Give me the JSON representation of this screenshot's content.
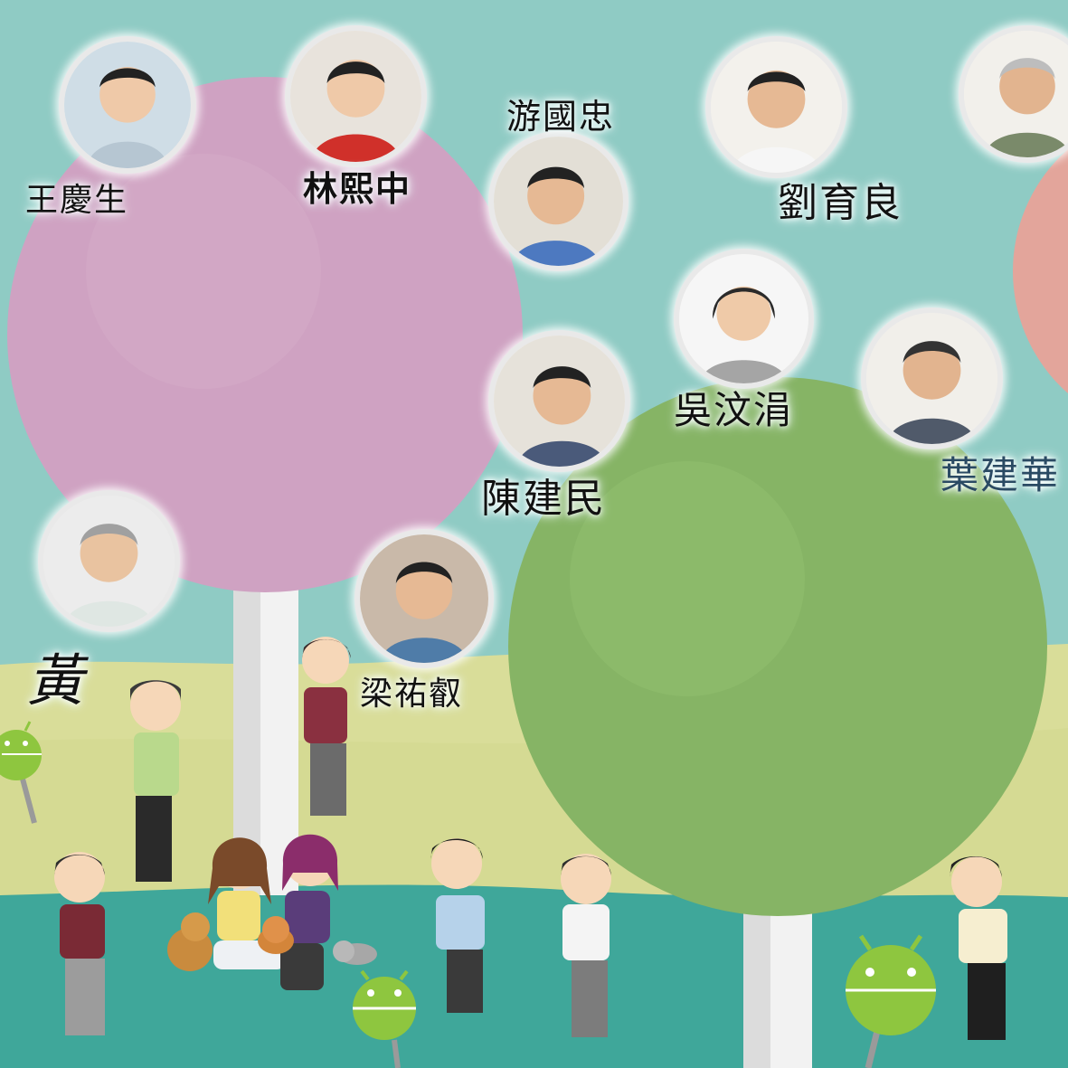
{
  "people": [
    {
      "id": "wang",
      "name": "王慶生"
    },
    {
      "id": "lin",
      "name": "林熙中"
    },
    {
      "id": "you",
      "name": "游國忠"
    },
    {
      "id": "liu",
      "name": "劉育良"
    },
    {
      "id": "wu",
      "name": "吳汶涓"
    },
    {
      "id": "ye",
      "name": "葉建華"
    },
    {
      "id": "chen",
      "name": "陳建民"
    },
    {
      "id": "liang",
      "name": "梁祐叡"
    },
    {
      "id": "huang",
      "name": "黃"
    }
  ],
  "colors": {
    "sky": "#8fcbc4",
    "meadow": "#d9dd99",
    "grass": "#3fa79a",
    "pink_tree": "#cfa2c2",
    "green_tree": "#86b465",
    "salmon_tree": "#e3a59b",
    "android_green": "#8ec63f"
  }
}
